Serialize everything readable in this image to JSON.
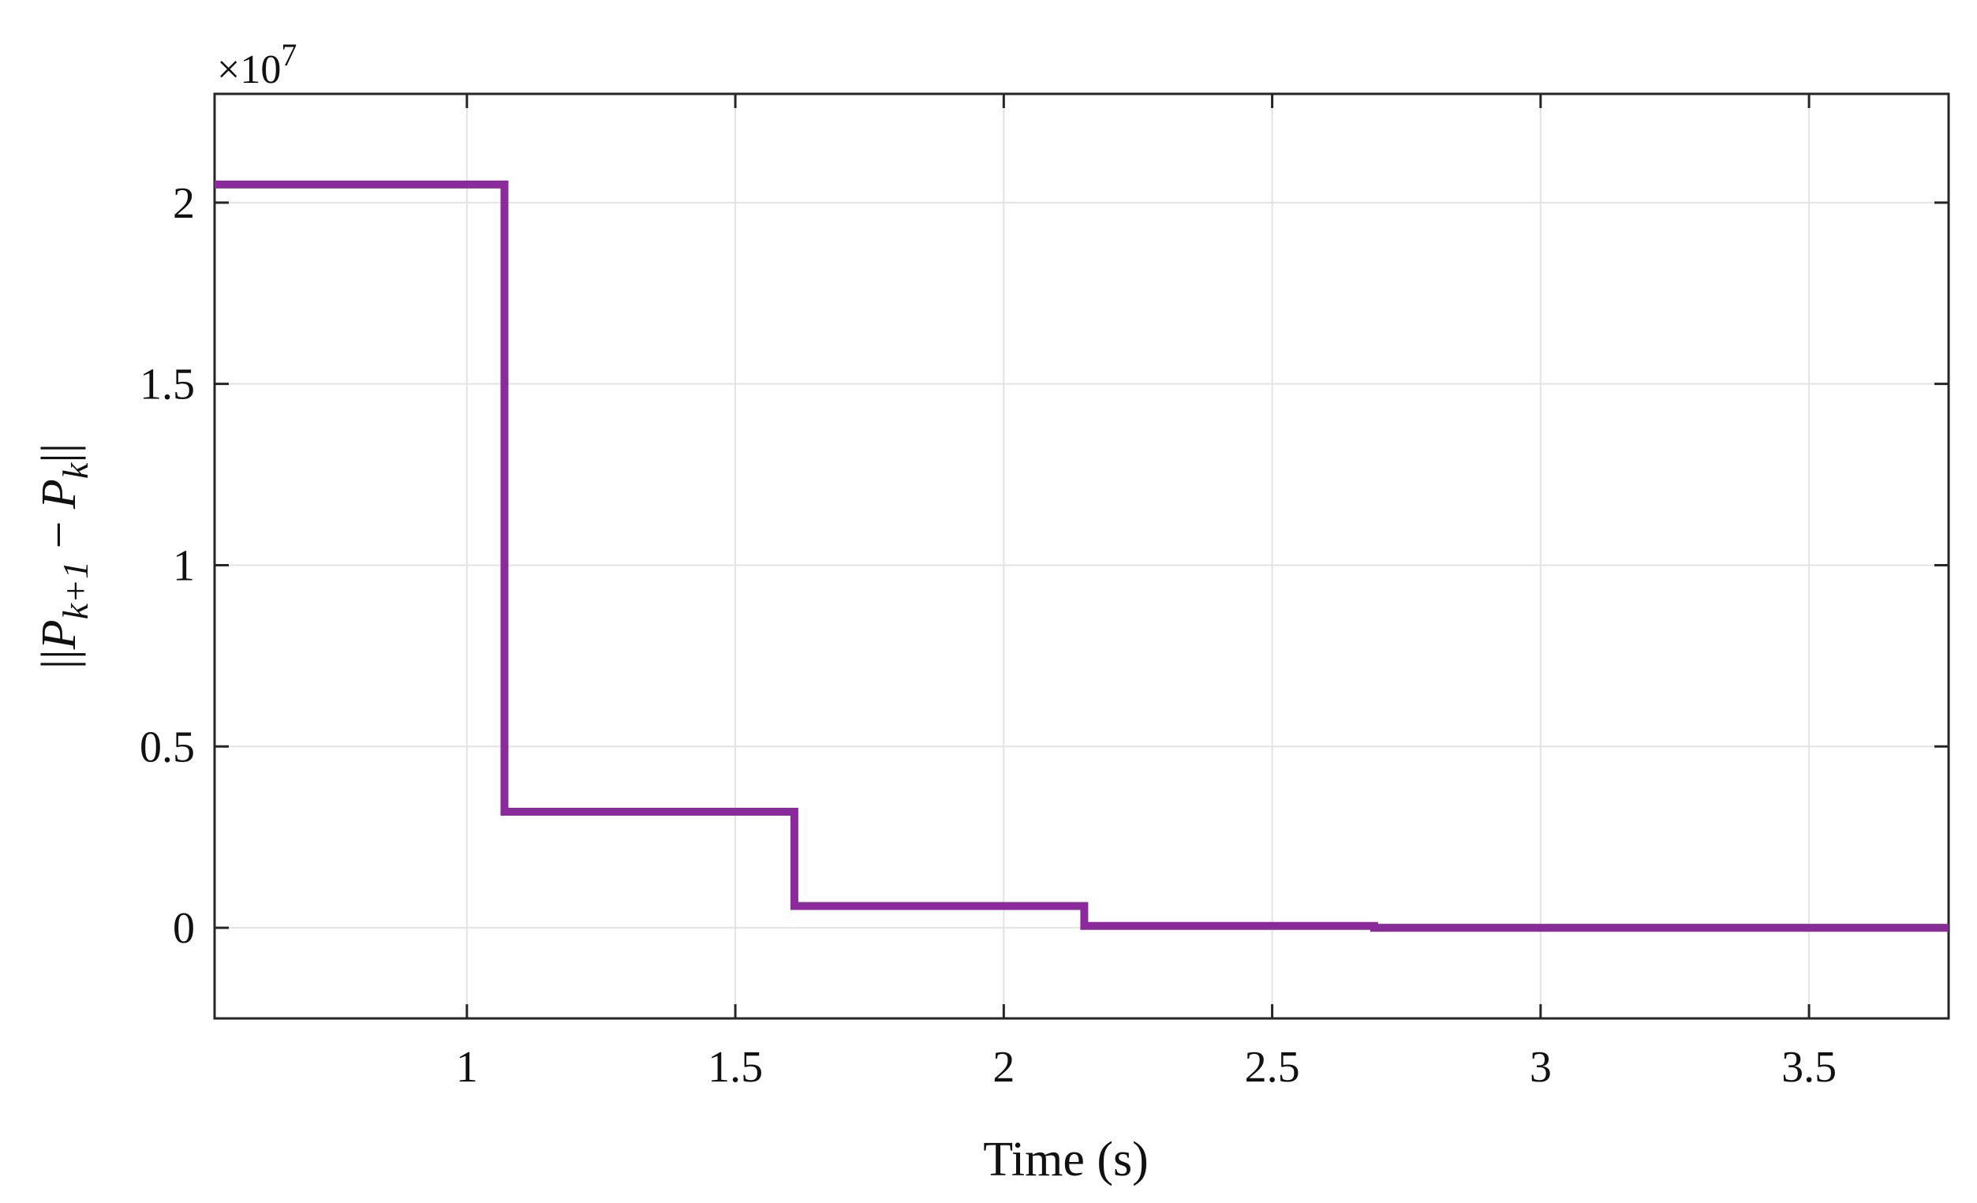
{
  "chart_data": {
    "type": "line",
    "line_style": "step",
    "color": "#8B2A9B",
    "x": [
      0.53,
      1.07,
      1.07,
      1.61,
      1.61,
      2.15,
      2.15,
      2.69,
      2.69,
      3.76
    ],
    "y": [
      2.05,
      2.05,
      0.32,
      0.32,
      0.06,
      0.06,
      0.005,
      0.005,
      0.0,
      0.0
    ],
    "y_multiplier": 10000000,
    "y_exponent_label": "×10",
    "y_exponent_power": "7",
    "xlim": [
      0.53,
      3.76
    ],
    "ylim": [
      -0.25,
      2.3
    ],
    "xticks": [
      1,
      1.5,
      2,
      2.5,
      3,
      3.5
    ],
    "xtick_labels": [
      "1",
      "1.5",
      "2",
      "2.5",
      "3",
      "3.5"
    ],
    "yticks": [
      0,
      0.5,
      1,
      1.5,
      2
    ],
    "ytick_labels": [
      "0",
      "0.5",
      "1",
      "1.5",
      "2"
    ],
    "xlabel": "Time (s)",
    "ylabel": {
      "open": "||",
      "sym1": "P",
      "sub1": "k+1",
      "minus": " − ",
      "sym2": "P",
      "sub2": "k",
      "close": "||"
    },
    "grid": true
  }
}
